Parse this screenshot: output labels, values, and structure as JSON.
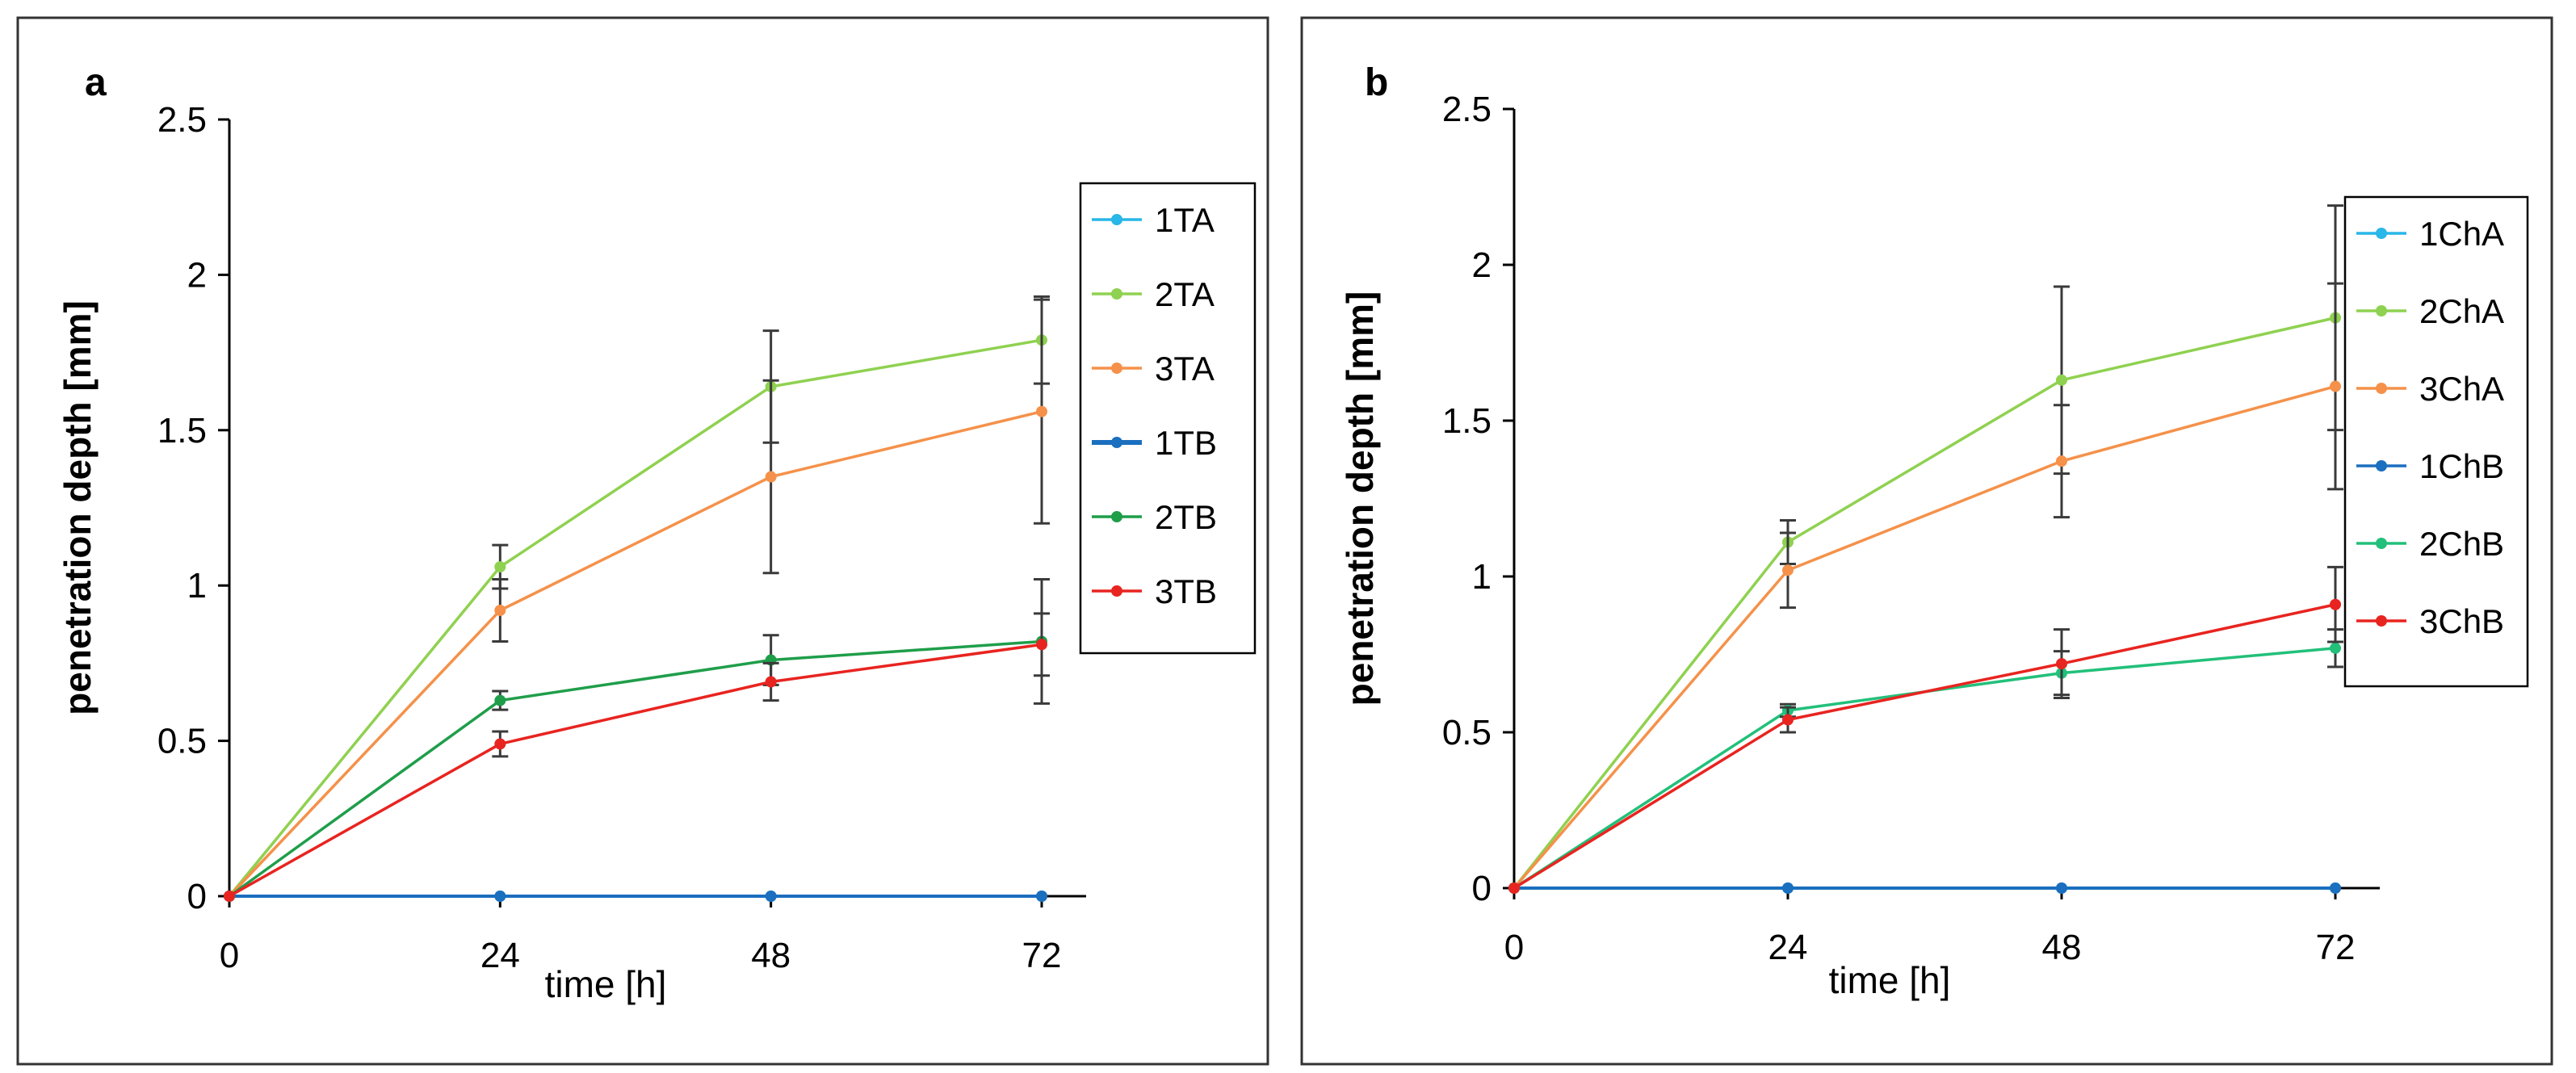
{
  "chart_data": [
    {
      "type": "line",
      "panel_label": "a",
      "x": [
        0,
        24,
        48,
        72
      ],
      "x_ticks": [
        "0",
        "24",
        "48",
        "72"
      ],
      "xlabel": "time [h]",
      "ylabel": "penetration depth [mm]",
      "ylim": [
        0,
        2.5
      ],
      "y_ticks": [
        "0",
        "0.5",
        "1",
        "1.5",
        "2",
        "2.5"
      ],
      "grid": false,
      "legend_position": "right",
      "series": [
        {
          "name": "1TA",
          "color": "#29b6e8",
          "values": [
            0,
            0,
            0,
            0
          ],
          "errors": [
            0,
            0,
            0,
            0
          ]
        },
        {
          "name": "2TA",
          "color": "#8fd150",
          "values": [
            0,
            1.06,
            1.64,
            1.79
          ],
          "errors": [
            0,
            0.07,
            0.18,
            0.14
          ]
        },
        {
          "name": "3TA",
          "color": "#f5914a",
          "values": [
            0,
            0.92,
            1.35,
            1.56
          ],
          "errors": [
            0,
            0.1,
            0.31,
            0.36
          ]
        },
        {
          "name": "1TB",
          "color": "#1a6fbf",
          "values": [
            0,
            0,
            0,
            0
          ],
          "errors": [
            0,
            0,
            0,
            0
          ]
        },
        {
          "name": "2TB",
          "color": "#1f9e4a",
          "values": [
            0,
            0.63,
            0.76,
            0.82
          ],
          "errors": [
            0,
            0.03,
            0.08,
            0.2
          ]
        },
        {
          "name": "3TB",
          "color": "#e82420",
          "values": [
            0,
            0.49,
            0.69,
            0.81
          ],
          "errors": [
            0,
            0.04,
            0.06,
            0.1
          ]
        }
      ]
    },
    {
      "type": "line",
      "panel_label": "b",
      "x": [
        0,
        24,
        48,
        72
      ],
      "x_ticks": [
        "0",
        "24",
        "48",
        "72"
      ],
      "xlabel": "time [h]",
      "ylabel": "penetration depth [mm]",
      "ylim": [
        0,
        2.5
      ],
      "y_ticks": [
        "0",
        "0.5",
        "1",
        "1.5",
        "2",
        "2.5"
      ],
      "grid": false,
      "legend_position": "right",
      "series": [
        {
          "name": "1ChA",
          "color": "#29b6e8",
          "values": [
            0,
            0,
            0,
            0
          ],
          "errors": [
            0,
            0,
            0,
            0
          ]
        },
        {
          "name": "2ChA",
          "color": "#8fd150",
          "values": [
            0,
            1.11,
            1.63,
            1.83
          ],
          "errors": [
            0,
            0.07,
            0.3,
            0.36
          ]
        },
        {
          "name": "3ChA",
          "color": "#f5914a",
          "values": [
            0,
            1.02,
            1.37,
            1.61
          ],
          "errors": [
            0,
            0.12,
            0.18,
            0.33
          ]
        },
        {
          "name": "1ChB",
          "color": "#1a6fbf",
          "values": [
            0,
            0,
            0,
            0
          ],
          "errors": [
            0,
            0,
            0,
            0
          ]
        },
        {
          "name": "2ChB",
          "color": "#22c07a",
          "values": [
            0,
            0.57,
            0.69,
            0.77
          ],
          "errors": [
            0,
            0.02,
            0.07,
            0.06
          ]
        },
        {
          "name": "3ChB",
          "color": "#e82420",
          "values": [
            0,
            0.54,
            0.72,
            0.91
          ],
          "errors": [
            0,
            0.04,
            0.11,
            0.12
          ]
        }
      ]
    }
  ]
}
